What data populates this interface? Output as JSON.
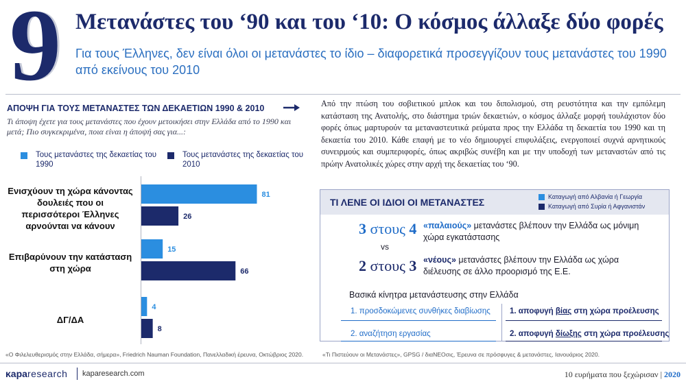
{
  "header": {
    "number": "9",
    "title": "Μετανάστες του ‘90 και του ‘10: Ο κόσμος άλλαξε δύο φορές",
    "subtitle": "Για τους Έλληνες, δεν είναι όλοι οι μετανάστες το ίδιο – διαφορετικά προσεγγίζουν τους μετανάστες του 1990 από εκείνους του 2010"
  },
  "left_panel": {
    "heading": "ΑΠΟΨΗ ΓΙΑ ΤΟΥΣ ΜΕΤΑΝΑΣΤΕΣ ΤΩΝ ΔΕΚΑΕΤΙΩΝ 1990 & 2010",
    "question": "Τι άποψη έχετε για τους μετανάστες που έχουν μετοικήσει στην Ελλάδα από το 1990 και μετά; Πιο συγκεκριμένα, ποια είναι η άποψή σας για...:",
    "source": "«Ο Φιλελευθερισμός στην Ελλάδα, σήμερα», Friedrich Nauman Foundation, Πανελλαδική έρευνα, Οκτώβριος 2020."
  },
  "chart_data": {
    "type": "bar",
    "orientation": "horizontal",
    "categories": [
      "Ενισχύουν τη χώρα κάνοντας δουλειές που οι περισσότεροι Έλληνες αρνούνται να κάνουν",
      "Επιβαρύνουν την κατάσταση στη χώρα",
      "ΔΓ/ΔΑ"
    ],
    "series": [
      {
        "name": "Τους μετανάστες της δεκαετίας του 1990",
        "color": "#2b8ee0",
        "values": [
          81,
          15,
          4
        ]
      },
      {
        "name": "Τους μετανάστες της δεκαετίας του 2010",
        "color": "#1c2a6b",
        "values": [
          26,
          66,
          8
        ]
      }
    ],
    "xlim": [
      0,
      100
    ],
    "data_labels": true,
    "legend_position": "top"
  },
  "right_panel": {
    "paragraph": "Από την πτώση του σοβιετικού μπλοκ και του διπολισμού, στη ρευστότητα και την εμπόλεμη κατάσταση της Ανατολής, στο διάστημα τριών δεκαετιών, ο κόσμος άλλαξε μορφή τουλάχιστον δύο φορές όπως μαρτυρούν τα μεταναστευτικά ρεύματα προς την Ελλάδα τη δεκαετία του 1990 και τη δεκαετία του 2010. Κάθε επαφή με το νέο δημιουργεί επιφυλάξεις, ενεργοποιεί συχνά αρνητικούς συνειρμούς και συμπεριφορές, όπως ακριβώς συνέβη και με την υποδοχή των μεταναστών από τις πρώην Ανατολικές χώρες στην αρχή της δεκαετίας του ‘90.",
    "box": {
      "title": "ΤΙ ΛΕΝΕ ΟΙ ΙΔΙΟΙ ΟΙ ΜΕΤΑΝΑΣΤΕΣ",
      "legend": [
        {
          "label": "Καταγωγή από Αλβανία ή Γεωργία",
          "color": "#2b8ee0"
        },
        {
          "label": "Καταγωγή από Συρία ή Αφγανιστάν",
          "color": "#1c2a6b"
        }
      ],
      "stat1": {
        "a": "3",
        "word": "στους",
        "b": "4",
        "highlight": "«παλαιούς»",
        "rest": " μετανάστες βλέπουν την Ελλάδα ως μόνιμη χώρα εγκατάστασης"
      },
      "vs": "vs",
      "stat2": {
        "a": "2",
        "word": "στους",
        "b": "3",
        "highlight": "«νέους»",
        "rest": " μετανάστες βλέπουν την Ελλάδα ως χώρα διέλευσης σε άλλο προορισμό της Ε.Ε."
      },
      "motives_title": "Βασικά κίνητρα μετανάστευσης στην Ελλάδα",
      "motives_left": [
        "1. προσδοκώμενες συνθήκες διαβίωσης",
        "2. αναζήτηση εργασίας"
      ],
      "motives_right": [
        {
          "pre": "1. αποφυγή ",
          "u": "βίας",
          "post": " στη χώρα προέλευσης"
        },
        {
          "pre": "2. αποφυγή ",
          "u": "δίωξης",
          "post": " στη χώρα προέλευσης"
        }
      ]
    },
    "source": "«Τι Πιστεύουν οι Μετανάστες», GPSG / διαNEOσις, Έρευνα σε πρόσφυγες & μετανάστες, Ιανουάριος 2020."
  },
  "footer": {
    "logo_bold": "κapa",
    "logo_light": "research",
    "url": "kaparesearch.com",
    "right_text": "10 ευρήματα που ξεχώρισαν",
    "separator": "|",
    "year": "2020"
  }
}
